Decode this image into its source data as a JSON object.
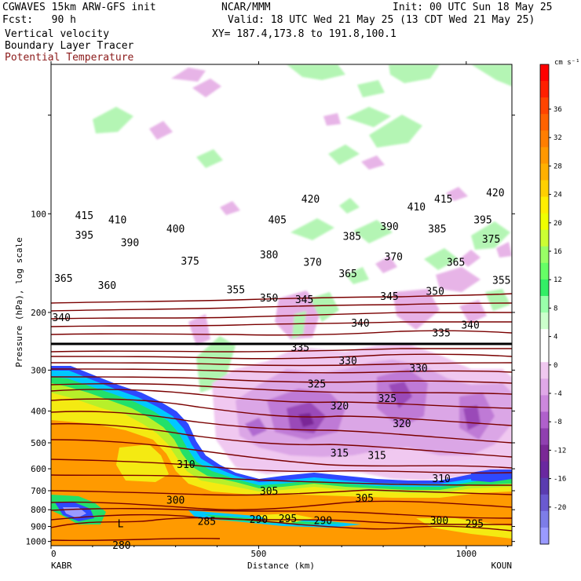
{
  "header": {
    "model": "CGWAVES 15km ARW-GFS init",
    "org": "NCAR/MMM",
    "init": "Init: 00 UTC Sun 18 May 25",
    "fcst": "Fcst:   90 h",
    "valid": "Valid: 18 UTC Wed 21 May 25 (13 CDT Wed 21 May 25)",
    "field1": "Vertical velocity",
    "xy": "XY= 187.4,173.8 to 191.8,100.1",
    "field2": "Boundary Layer Tracer",
    "field3": "Potential Temperature"
  },
  "colors": {
    "theta_line": "#7a0000",
    "tropopause_line": "#000000",
    "title_red": "#8b1a1a"
  },
  "chart_data": {
    "type": "heatmap",
    "xlabel": "Distance (km)",
    "ylabel": "Pressure (hPa), log scale",
    "xlim": [
      0,
      1110
    ],
    "ylim": [
      1030,
      35
    ],
    "log_y": true,
    "x_ticks": [
      "0",
      "500",
      "1000"
    ],
    "x_tick_values": [
      0,
      500,
      1000
    ],
    "y_ticks": [
      "100",
      "200",
      "300",
      "400",
      "500",
      "600",
      "700",
      "800",
      "900",
      "1000"
    ],
    "y_tick_values": [
      100,
      200,
      300,
      400,
      500,
      600,
      700,
      800,
      900,
      1000
    ],
    "start_station": "KABR",
    "end_station": "KOUN",
    "colorbar": {
      "unit": "cm s⁻¹",
      "labels": [
        "36",
        "32",
        "28",
        "24",
        "20",
        "16",
        "12",
        "8",
        "4",
        "0",
        "-4",
        "-8",
        "-12",
        "-16",
        "-20"
      ],
      "colors": [
        "#ff0000",
        "#ff2000",
        "#ff4400",
        "#ff6200",
        "#ff7e00",
        "#ff9800",
        "#ffb000",
        "#ffd000",
        "#ffee00",
        "#f0ff00",
        "#ccff33",
        "#99ff66",
        "#66ff66",
        "#33ee66",
        "#99ffaa",
        "#ccffcc",
        "#ffffff",
        "#ffffff",
        "#f0c8f0",
        "#e0a8e8",
        "#cc88dd",
        "#b060cc",
        "#9040b0",
        "#7a2896",
        "#6a28a0",
        "#5a3cb0",
        "#6a5ad0",
        "#7d7de8",
        "#9a9aff"
      ]
    },
    "theta_levels": [
      {
        "theta": 280,
        "x": 170,
        "p": 1025
      },
      {
        "theta": 285,
        "x": 375,
        "p": 865
      },
      {
        "theta": 290,
        "x": 500,
        "p": 855
      },
      {
        "theta": 290,
        "x": 655,
        "p": 860
      },
      {
        "theta": 295,
        "x": 570,
        "p": 850
      },
      {
        "theta": 295,
        "x": 1020,
        "p": 880
      },
      {
        "theta": 300,
        "x": 300,
        "p": 745
      },
      {
        "theta": 300,
        "x": 935,
        "p": 860
      },
      {
        "theta": 305,
        "x": 525,
        "p": 700
      },
      {
        "theta": 305,
        "x": 755,
        "p": 735
      },
      {
        "theta": 310,
        "x": 325,
        "p": 580
      },
      {
        "theta": 310,
        "x": 940,
        "p": 640
      },
      {
        "theta": 315,
        "x": 695,
        "p": 535
      },
      {
        "theta": 315,
        "x": 785,
        "p": 545
      },
      {
        "theta": 320,
        "x": 695,
        "p": 385
      },
      {
        "theta": 320,
        "x": 845,
        "p": 435
      },
      {
        "theta": 325,
        "x": 640,
        "p": 330
      },
      {
        "theta": 325,
        "x": 810,
        "p": 365
      },
      {
        "theta": 330,
        "x": 715,
        "p": 280
      },
      {
        "theta": 330,
        "x": 885,
        "p": 295
      },
      {
        "theta": 335,
        "x": 600,
        "p": 255
      },
      {
        "theta": 335,
        "x": 940,
        "p": 230
      },
      {
        "theta": 340,
        "x": 25,
        "p": 207
      },
      {
        "theta": 340,
        "x": 745,
        "p": 215
      },
      {
        "theta": 340,
        "x": 1010,
        "p": 218
      },
      {
        "theta": 345,
        "x": 610,
        "p": 182
      },
      {
        "theta": 345,
        "x": 815,
        "p": 178
      },
      {
        "theta": 350,
        "x": 525,
        "p": 180
      },
      {
        "theta": 350,
        "x": 925,
        "p": 172
      },
      {
        "theta": 355,
        "x": 445,
        "p": 170
      },
      {
        "theta": 355,
        "x": 1085,
        "p": 159
      },
      {
        "theta": 360,
        "x": 135,
        "p": 165
      },
      {
        "theta": 365,
        "x": 30,
        "p": 157
      },
      {
        "theta": 365,
        "x": 715,
        "p": 152
      },
      {
        "theta": 365,
        "x": 975,
        "p": 140
      },
      {
        "theta": 370,
        "x": 630,
        "p": 140
      },
      {
        "theta": 370,
        "x": 825,
        "p": 135
      },
      {
        "theta": 375,
        "x": 335,
        "p": 139
      },
      {
        "theta": 375,
        "x": 1060,
        "p": 119
      },
      {
        "theta": 380,
        "x": 525,
        "p": 133
      },
      {
        "theta": 385,
        "x": 725,
        "p": 117
      },
      {
        "theta": 385,
        "x": 930,
        "p": 111
      },
      {
        "theta": 390,
        "x": 190,
        "p": 122
      },
      {
        "theta": 390,
        "x": 815,
        "p": 109
      },
      {
        "theta": 395,
        "x": 80,
        "p": 116
      },
      {
        "theta": 395,
        "x": 1040,
        "p": 104
      },
      {
        "theta": 400,
        "x": 300,
        "p": 111
      },
      {
        "theta": 405,
        "x": 545,
        "p": 104
      },
      {
        "theta": 410,
        "x": 160,
        "p": 104
      },
      {
        "theta": 410,
        "x": 880,
        "p": 95
      },
      {
        "theta": 415,
        "x": 80,
        "p": 101
      },
      {
        "theta": 415,
        "x": 945,
        "p": 90
      },
      {
        "theta": 420,
        "x": 625,
        "p": 90
      },
      {
        "theta": 420,
        "x": 1070,
        "p": 86
      }
    ],
    "low_label": "L"
  }
}
